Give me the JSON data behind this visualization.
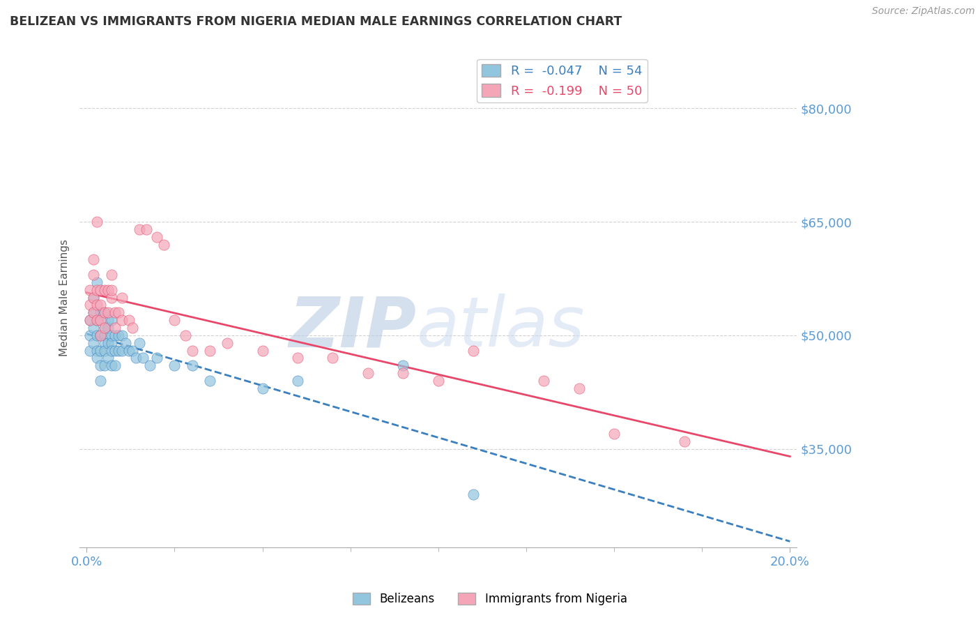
{
  "title": "BELIZEAN VS IMMIGRANTS FROM NIGERIA MEDIAN MALE EARNINGS CORRELATION CHART",
  "source": "Source: ZipAtlas.com",
  "xlabel": "",
  "ylabel": "Median Male Earnings",
  "xlim": [
    -0.002,
    0.202
  ],
  "ylim": [
    22000,
    88000
  ],
  "yticks": [
    35000,
    50000,
    65000,
    80000
  ],
  "ytick_labels": [
    "$35,000",
    "$50,000",
    "$65,000",
    "$80,000"
  ],
  "xtick_positions": [
    0.0,
    0.2
  ],
  "xtick_labels": [
    "0.0%",
    "20.0%"
  ],
  "blue_color": "#92c5de",
  "pink_color": "#f4a6b8",
  "blue_line_color": "#3a7fbf",
  "pink_line_color": "#e8476a",
  "watermark_zip": "ZIP",
  "watermark_atlas": "atlas",
  "watermark_color": "#c8d8ee",
  "axis_label_color": "#5b9bd5",
  "legend_blue_label": "R =  -0.047    N = 54",
  "legend_pink_label": "R =  -0.199    N = 50",
  "belizean_x": [
    0.001,
    0.001,
    0.001,
    0.002,
    0.002,
    0.002,
    0.002,
    0.003,
    0.003,
    0.003,
    0.003,
    0.003,
    0.004,
    0.004,
    0.004,
    0.004,
    0.004,
    0.005,
    0.005,
    0.005,
    0.005,
    0.005,
    0.005,
    0.006,
    0.006,
    0.006,
    0.006,
    0.007,
    0.007,
    0.007,
    0.007,
    0.007,
    0.008,
    0.008,
    0.008,
    0.009,
    0.009,
    0.01,
    0.01,
    0.011,
    0.012,
    0.013,
    0.014,
    0.015,
    0.016,
    0.018,
    0.02,
    0.025,
    0.03,
    0.035,
    0.05,
    0.06,
    0.09,
    0.11
  ],
  "belizean_y": [
    52000,
    50000,
    48000,
    55000,
    53000,
    51000,
    49000,
    52000,
    57000,
    50000,
    48000,
    47000,
    50000,
    53000,
    48000,
    46000,
    44000,
    53000,
    51000,
    50000,
    49000,
    48000,
    46000,
    52000,
    51000,
    49000,
    47000,
    52000,
    50000,
    49000,
    48000,
    46000,
    50000,
    48000,
    46000,
    50000,
    48000,
    50000,
    48000,
    49000,
    48000,
    48000,
    47000,
    49000,
    47000,
    46000,
    47000,
    46000,
    46000,
    44000,
    43000,
    44000,
    46000,
    29000
  ],
  "nigeria_x": [
    0.001,
    0.001,
    0.001,
    0.002,
    0.002,
    0.002,
    0.002,
    0.003,
    0.003,
    0.003,
    0.003,
    0.004,
    0.004,
    0.004,
    0.004,
    0.005,
    0.005,
    0.005,
    0.006,
    0.006,
    0.007,
    0.007,
    0.007,
    0.008,
    0.008,
    0.009,
    0.01,
    0.01,
    0.012,
    0.013,
    0.015,
    0.017,
    0.02,
    0.022,
    0.025,
    0.028,
    0.03,
    0.035,
    0.04,
    0.05,
    0.06,
    0.07,
    0.08,
    0.09,
    0.1,
    0.11,
    0.13,
    0.14,
    0.15,
    0.17
  ],
  "nigeria_y": [
    52000,
    54000,
    56000,
    53000,
    58000,
    60000,
    55000,
    65000,
    52000,
    56000,
    54000,
    56000,
    54000,
    52000,
    50000,
    56000,
    53000,
    51000,
    56000,
    53000,
    55000,
    58000,
    56000,
    53000,
    51000,
    53000,
    55000,
    52000,
    52000,
    51000,
    64000,
    64000,
    63000,
    62000,
    52000,
    50000,
    48000,
    48000,
    49000,
    48000,
    47000,
    47000,
    45000,
    45000,
    44000,
    48000,
    44000,
    43000,
    37000,
    36000
  ]
}
